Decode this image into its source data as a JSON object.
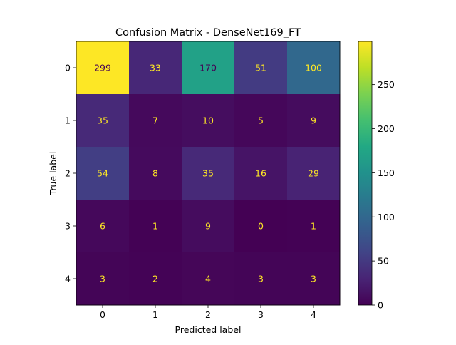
{
  "chart_data": {
    "type": "heatmap",
    "title": "Confusion Matrix - DenseNet169_FT",
    "xlabel": "Predicted label",
    "ylabel": "True label",
    "x_categories": [
      "0",
      "1",
      "2",
      "3",
      "4"
    ],
    "y_categories": [
      "0",
      "1",
      "2",
      "3",
      "4"
    ],
    "values": [
      [
        299,
        33,
        170,
        51,
        100
      ],
      [
        35,
        7,
        10,
        5,
        9
      ],
      [
        54,
        8,
        35,
        16,
        29
      ],
      [
        6,
        1,
        9,
        0,
        1
      ],
      [
        3,
        2,
        4,
        3,
        3
      ]
    ],
    "colormap": "viridis",
    "value_range": [
      0,
      299
    ],
    "colorbar": {
      "ticks": [
        0,
        50,
        100,
        150,
        200,
        250
      ],
      "tick_labels": [
        "0",
        "50",
        "100",
        "150",
        "200",
        "250"
      ]
    },
    "text_colors": {
      "dark_cell": "#fde725",
      "light_cell": "#440154"
    }
  }
}
